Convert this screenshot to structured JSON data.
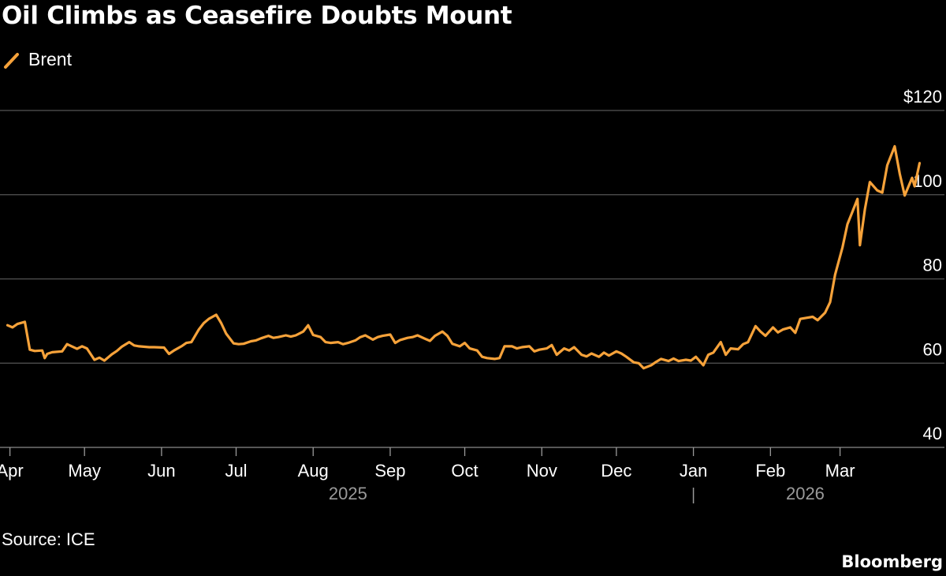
{
  "title": "Oil Climbs as Ceasefire Doubts Mount",
  "source": "Source: ICE",
  "brand": "Bloomberg",
  "colors": {
    "line": "#f6a23a",
    "grid": "#555555",
    "axis": "#9a9a9a",
    "background": "#000000"
  },
  "chart_data": {
    "type": "line",
    "title": "Oil Climbs as Ceasefire Doubts Mount",
    "ylabel": "",
    "xlabel": "",
    "ylim": [
      40,
      120
    ],
    "y_ticks": [
      40,
      60,
      80,
      100,
      120
    ],
    "y_tick_labels": [
      "40",
      "60",
      "80",
      "100",
      "$120"
    ],
    "x_range": [
      "2025-03-28",
      "2026-04-12"
    ],
    "x_ticks": [
      {
        "date": "2025-04-01",
        "label": "Apr"
      },
      {
        "date": "2025-05-01",
        "label": "May"
      },
      {
        "date": "2025-06-01",
        "label": "Jun"
      },
      {
        "date": "2025-07-01",
        "label": "Jul"
      },
      {
        "date": "2025-08-01",
        "label": "Aug"
      },
      {
        "date": "2025-09-01",
        "label": "Sep"
      },
      {
        "date": "2025-10-01",
        "label": "Oct"
      },
      {
        "date": "2025-11-01",
        "label": "Nov"
      },
      {
        "date": "2025-12-01",
        "label": "Dec"
      },
      {
        "date": "2026-01-01",
        "label": "Jan"
      },
      {
        "date": "2026-02-01",
        "label": "Feb"
      },
      {
        "date": "2026-03-01",
        "label": "Mar"
      }
    ],
    "year_labels": [
      {
        "label": "2025",
        "center": "2025-08-15"
      },
      {
        "label": "2026",
        "center": "2026-02-15"
      }
    ],
    "year_separator": "2026-01-01",
    "legend": "top-left",
    "grid": true,
    "series": [
      {
        "name": "Brent",
        "points": [
          [
            "2025-03-31",
            69.0
          ],
          [
            "2025-04-02",
            68.5
          ],
          [
            "2025-04-04",
            69.3
          ],
          [
            "2025-04-07",
            69.8
          ],
          [
            "2025-04-09",
            63.2
          ],
          [
            "2025-04-11",
            62.9
          ],
          [
            "2025-04-14",
            63.0
          ],
          [
            "2025-04-15",
            61.2
          ],
          [
            "2025-04-16",
            62.2
          ],
          [
            "2025-04-18",
            62.6
          ],
          [
            "2025-04-22",
            62.8
          ],
          [
            "2025-04-24",
            64.5
          ],
          [
            "2025-04-28",
            63.4
          ],
          [
            "2025-04-30",
            64.0
          ],
          [
            "2025-05-02",
            63.5
          ],
          [
            "2025-05-05",
            60.8
          ],
          [
            "2025-05-07",
            61.3
          ],
          [
            "2025-05-09",
            60.6
          ],
          [
            "2025-05-12",
            62.1
          ],
          [
            "2025-05-14",
            62.9
          ],
          [
            "2025-05-16",
            63.9
          ],
          [
            "2025-05-19",
            65.0
          ],
          [
            "2025-05-21",
            64.2
          ],
          [
            "2025-05-23",
            64.0
          ],
          [
            "2025-05-27",
            63.8
          ],
          [
            "2025-05-29",
            63.8
          ],
          [
            "2025-06-02",
            63.7
          ],
          [
            "2025-06-04",
            62.2
          ],
          [
            "2025-06-06",
            63.0
          ],
          [
            "2025-06-09",
            64.0
          ],
          [
            "2025-06-11",
            64.8
          ],
          [
            "2025-06-13",
            65.0
          ],
          [
            "2025-06-16",
            68.0
          ],
          [
            "2025-06-18",
            69.5
          ],
          [
            "2025-06-20",
            70.5
          ],
          [
            "2025-06-23",
            71.5
          ],
          [
            "2025-06-25",
            69.5
          ],
          [
            "2025-06-27",
            67.0
          ],
          [
            "2025-06-30",
            64.7
          ],
          [
            "2025-07-02",
            64.5
          ],
          [
            "2025-07-04",
            64.6
          ],
          [
            "2025-07-07",
            65.2
          ],
          [
            "2025-07-09",
            65.4
          ],
          [
            "2025-07-11",
            65.9
          ],
          [
            "2025-07-14",
            66.5
          ],
          [
            "2025-07-16",
            66.0
          ],
          [
            "2025-07-18",
            66.2
          ],
          [
            "2025-07-21",
            66.6
          ],
          [
            "2025-07-23",
            66.3
          ],
          [
            "2025-07-25",
            66.6
          ],
          [
            "2025-07-28",
            67.5
          ],
          [
            "2025-07-30",
            69.0
          ],
          [
            "2025-08-01",
            66.7
          ],
          [
            "2025-08-04",
            66.2
          ],
          [
            "2025-08-06",
            65.0
          ],
          [
            "2025-08-08",
            64.8
          ],
          [
            "2025-08-11",
            65.0
          ],
          [
            "2025-08-13",
            64.5
          ],
          [
            "2025-08-15",
            64.8
          ],
          [
            "2025-08-18",
            65.4
          ],
          [
            "2025-08-20",
            66.2
          ],
          [
            "2025-08-22",
            66.6
          ],
          [
            "2025-08-25",
            65.6
          ],
          [
            "2025-08-27",
            66.2
          ],
          [
            "2025-08-29",
            66.5
          ],
          [
            "2025-09-01",
            66.8
          ],
          [
            "2025-09-03",
            64.8
          ],
          [
            "2025-09-05",
            65.5
          ],
          [
            "2025-09-08",
            66.0
          ],
          [
            "2025-09-10",
            66.2
          ],
          [
            "2025-09-12",
            66.6
          ],
          [
            "2025-09-15",
            65.8
          ],
          [
            "2025-09-17",
            65.3
          ],
          [
            "2025-09-19",
            66.5
          ],
          [
            "2025-09-22",
            67.5
          ],
          [
            "2025-09-24",
            66.5
          ],
          [
            "2025-09-26",
            64.6
          ],
          [
            "2025-09-29",
            64.0
          ],
          [
            "2025-10-01",
            64.8
          ],
          [
            "2025-10-03",
            63.5
          ],
          [
            "2025-10-06",
            63.0
          ],
          [
            "2025-10-08",
            61.5
          ],
          [
            "2025-10-10",
            61.2
          ],
          [
            "2025-10-13",
            61.0
          ],
          [
            "2025-10-15",
            61.2
          ],
          [
            "2025-10-17",
            64.0
          ],
          [
            "2025-10-20",
            64.0
          ],
          [
            "2025-10-22",
            63.5
          ],
          [
            "2025-10-24",
            63.8
          ],
          [
            "2025-10-27",
            64.0
          ],
          [
            "2025-10-29",
            62.8
          ],
          [
            "2025-10-31",
            63.2
          ],
          [
            "2025-11-03",
            63.5
          ],
          [
            "2025-11-05",
            64.3
          ],
          [
            "2025-11-07",
            62.0
          ],
          [
            "2025-11-10",
            63.5
          ],
          [
            "2025-11-12",
            63.0
          ],
          [
            "2025-11-14",
            63.8
          ],
          [
            "2025-11-17",
            62.0
          ],
          [
            "2025-11-19",
            61.6
          ],
          [
            "2025-11-21",
            62.3
          ],
          [
            "2025-11-24",
            61.5
          ],
          [
            "2025-11-26",
            62.5
          ],
          [
            "2025-11-28",
            61.8
          ],
          [
            "2025-12-01",
            62.8
          ],
          [
            "2025-12-03",
            62.3
          ],
          [
            "2025-12-05",
            61.5
          ],
          [
            "2025-12-08",
            60.2
          ],
          [
            "2025-12-10",
            60.0
          ],
          [
            "2025-12-12",
            58.8
          ],
          [
            "2025-12-15",
            59.5
          ],
          [
            "2025-12-17",
            60.3
          ],
          [
            "2025-12-19",
            61.0
          ],
          [
            "2025-12-22",
            60.5
          ],
          [
            "2025-12-24",
            61.1
          ],
          [
            "2025-12-26",
            60.5
          ],
          [
            "2025-12-29",
            60.8
          ],
          [
            "2025-12-31",
            60.6
          ],
          [
            "2026-01-02",
            61.5
          ],
          [
            "2026-01-05",
            59.5
          ],
          [
            "2026-01-07",
            62.0
          ],
          [
            "2026-01-09",
            62.5
          ],
          [
            "2026-01-12",
            65.0
          ],
          [
            "2026-01-14",
            62.0
          ],
          [
            "2026-01-16",
            63.5
          ],
          [
            "2026-01-19",
            63.3
          ],
          [
            "2026-01-21",
            64.5
          ],
          [
            "2026-01-23",
            65.0
          ],
          [
            "2026-01-26",
            68.8
          ],
          [
            "2026-01-28",
            67.5
          ],
          [
            "2026-01-30",
            66.5
          ],
          [
            "2026-02-02",
            68.5
          ],
          [
            "2026-02-04",
            67.3
          ],
          [
            "2026-02-06",
            68.0
          ],
          [
            "2026-02-09",
            68.5
          ],
          [
            "2026-02-11",
            67.2
          ],
          [
            "2026-02-13",
            70.5
          ],
          [
            "2026-02-16",
            70.8
          ],
          [
            "2026-02-18",
            71.0
          ],
          [
            "2026-02-20",
            70.2
          ],
          [
            "2026-02-23",
            72.0
          ],
          [
            "2026-02-25",
            74.5
          ],
          [
            "2026-02-27",
            81.0
          ],
          [
            "2026-03-02",
            87.5
          ],
          [
            "2026-03-04",
            93.0
          ],
          [
            "2026-03-06",
            96.0
          ],
          [
            "2026-03-08",
            99.0
          ],
          [
            "2026-03-09",
            88.0
          ],
          [
            "2026-03-11",
            96.5
          ],
          [
            "2026-03-13",
            103.0
          ],
          [
            "2026-03-16",
            101.0
          ],
          [
            "2026-03-18",
            100.5
          ],
          [
            "2026-03-20",
            107.0
          ],
          [
            "2026-03-23",
            111.5
          ],
          [
            "2026-03-25",
            105.0
          ],
          [
            "2026-03-27",
            99.8
          ],
          [
            "2026-03-30",
            104.0
          ],
          [
            "2026-03-31",
            102.0
          ],
          [
            "2026-04-02",
            107.5
          ]
        ]
      }
    ]
  }
}
